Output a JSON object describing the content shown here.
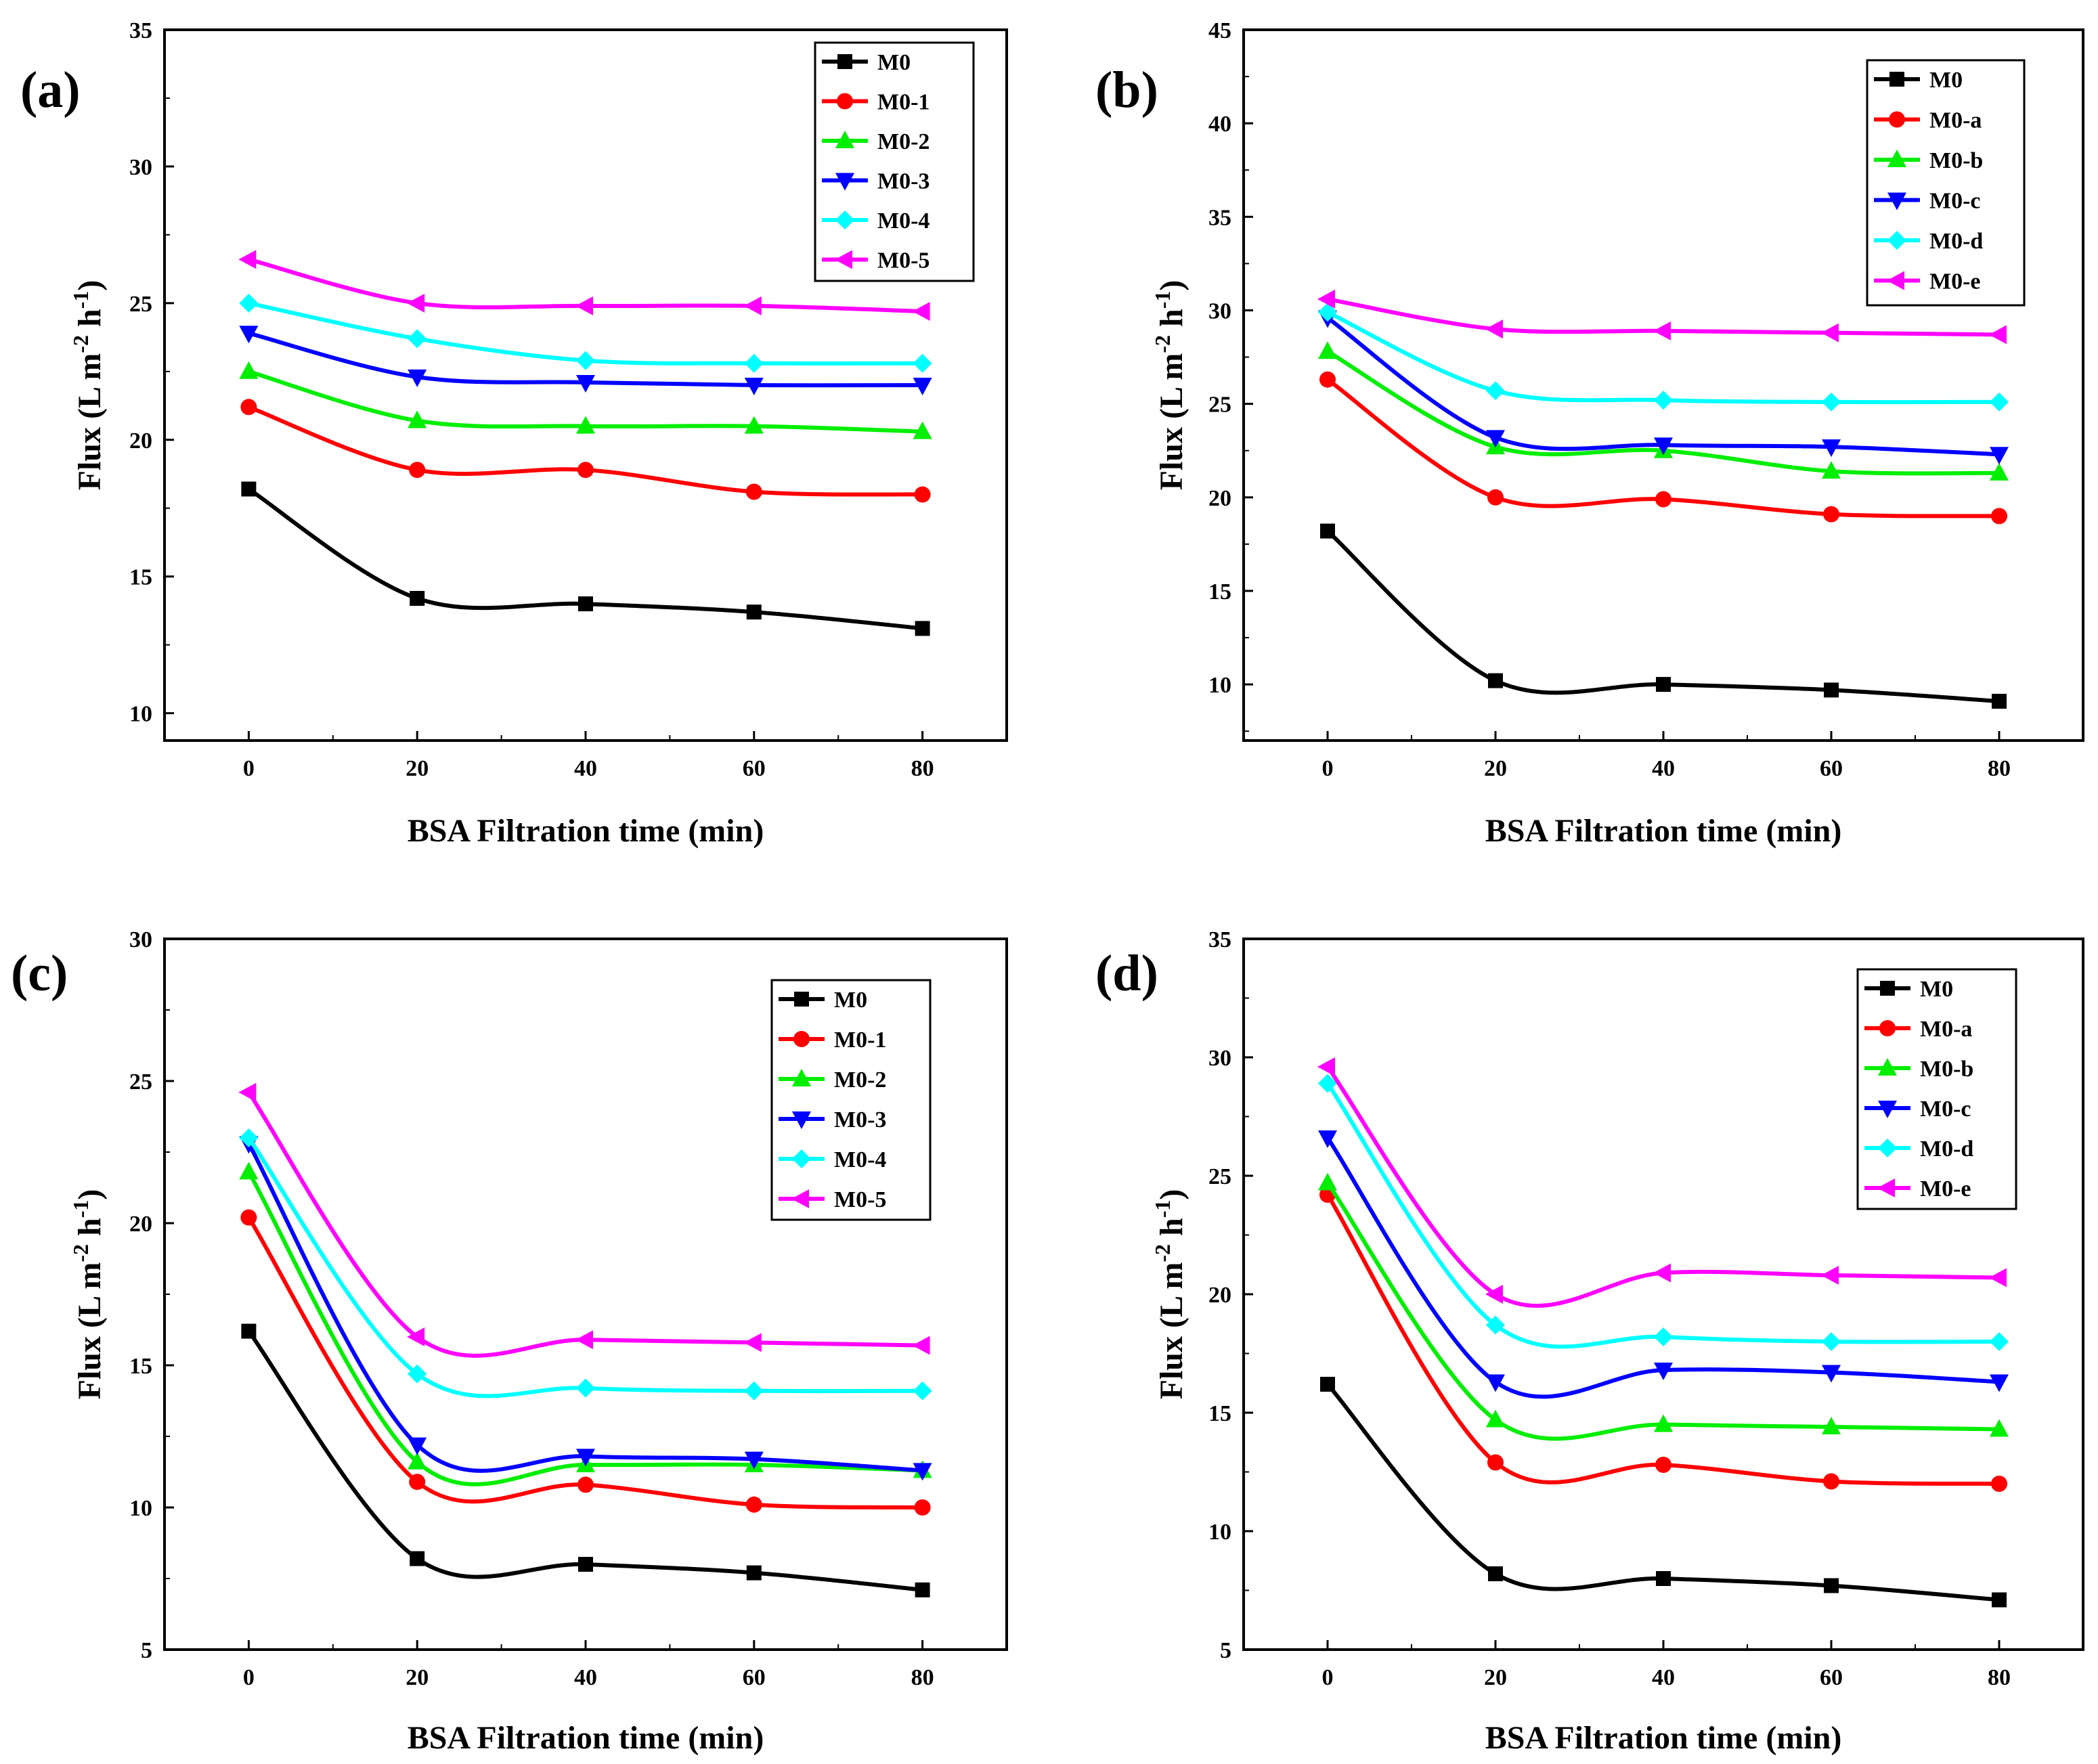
{
  "chart_data": [
    {
      "type": "line",
      "panel_label": "(a)",
      "xlabel": "BSA Filtration time (min)",
      "ylabel": "Flux (L m",
      "ylabel_sup1": "-2",
      "ylabel_mid": " h",
      "ylabel_sup2": "-1",
      "ylabel_end": ")",
      "xlim": [
        -10,
        90
      ],
      "ylim": [
        9,
        35
      ],
      "xticks": [
        0,
        20,
        40,
        60,
        80
      ],
      "yticks": [
        10,
        15,
        20,
        25,
        30,
        35
      ],
      "x": [
        0,
        20,
        40,
        60,
        80
      ],
      "legend_position": "top-right",
      "series": [
        {
          "name": "M0",
          "color": "#000000",
          "marker": "square",
          "values": [
            18.2,
            14.2,
            14.0,
            13.7,
            13.1
          ]
        },
        {
          "name": "M0-1",
          "color": "#ff0000",
          "marker": "circle",
          "values": [
            21.2,
            18.9,
            18.9,
            18.1,
            18.0
          ]
        },
        {
          "name": "M0-2",
          "color": "#00ee00",
          "marker": "triangle-up",
          "values": [
            22.5,
            20.7,
            20.5,
            20.5,
            20.3
          ]
        },
        {
          "name": "M0-3",
          "color": "#0000ff",
          "marker": "triangle-down",
          "values": [
            23.9,
            22.3,
            22.1,
            22.0,
            22.0
          ]
        },
        {
          "name": "M0-4",
          "color": "#00ffff",
          "marker": "diamond",
          "values": [
            25.0,
            23.7,
            22.9,
            22.8,
            22.8
          ]
        },
        {
          "name": "M0-5",
          "color": "#ff00ff",
          "marker": "triangle-left",
          "values": [
            26.6,
            25.0,
            24.9,
            24.9,
            24.7
          ]
        }
      ]
    },
    {
      "type": "line",
      "panel_label": "(b)",
      "xlabel": "BSA Filtration time (min)",
      "ylabel": "Flux (L m",
      "ylabel_sup1": "-2",
      "ylabel_mid": " h",
      "ylabel_sup2": "-1",
      "ylabel_end": ")",
      "xlim": [
        -10,
        90
      ],
      "ylim": [
        7,
        45
      ],
      "xticks": [
        0,
        20,
        40,
        60,
        80
      ],
      "yticks": [
        10,
        15,
        20,
        25,
        30,
        35,
        40,
        45
      ],
      "x": [
        0,
        20,
        40,
        60,
        80
      ],
      "legend_position": "top-right",
      "series": [
        {
          "name": "M0",
          "color": "#000000",
          "marker": "square",
          "values": [
            18.2,
            10.2,
            10.0,
            9.7,
            9.1
          ]
        },
        {
          "name": "M0-a",
          "color": "#ff0000",
          "marker": "circle",
          "values": [
            26.3,
            20.0,
            19.9,
            19.1,
            19.0
          ]
        },
        {
          "name": "M0-b",
          "color": "#00ee00",
          "marker": "triangle-up",
          "values": [
            27.8,
            22.7,
            22.5,
            21.4,
            21.3
          ]
        },
        {
          "name": "M0-c",
          "color": "#0000ff",
          "marker": "triangle-down",
          "values": [
            29.6,
            23.2,
            22.8,
            22.7,
            22.3
          ]
        },
        {
          "name": "M0-d",
          "color": "#00ffff",
          "marker": "diamond",
          "values": [
            29.9,
            25.7,
            25.2,
            25.1,
            25.1
          ]
        },
        {
          "name": "M0-e",
          "color": "#ff00ff",
          "marker": "triangle-left",
          "values": [
            30.6,
            29.0,
            28.9,
            28.8,
            28.7
          ]
        }
      ]
    },
    {
      "type": "line",
      "panel_label": "(c)",
      "xlabel": "BSA Filtration time (min)",
      "ylabel": "Flux (L m",
      "ylabel_sup1": "-2",
      "ylabel_mid": " h",
      "ylabel_sup2": "-1",
      "ylabel_end": ")",
      "xlim": [
        -10,
        90
      ],
      "ylim": [
        5,
        30
      ],
      "xticks": [
        0,
        20,
        40,
        60,
        80
      ],
      "yticks": [
        5,
        10,
        15,
        20,
        25,
        30
      ],
      "x": [
        0,
        20,
        40,
        60,
        80
      ],
      "legend_position": "top-right",
      "series": [
        {
          "name": "M0",
          "color": "#000000",
          "marker": "square",
          "values": [
            16.2,
            8.2,
            8.0,
            7.7,
            7.1
          ]
        },
        {
          "name": "M0-1",
          "color": "#ff0000",
          "marker": "circle",
          "values": [
            20.2,
            10.9,
            10.8,
            10.1,
            10.0
          ]
        },
        {
          "name": "M0-2",
          "color": "#00ee00",
          "marker": "triangle-up",
          "values": [
            21.8,
            11.6,
            11.5,
            11.5,
            11.3
          ]
        },
        {
          "name": "M0-3",
          "color": "#0000ff",
          "marker": "triangle-down",
          "values": [
            22.8,
            12.2,
            11.8,
            11.7,
            11.3
          ]
        },
        {
          "name": "M0-4",
          "color": "#00ffff",
          "marker": "diamond",
          "values": [
            23.0,
            14.7,
            14.2,
            14.1,
            14.1
          ]
        },
        {
          "name": "M0-5",
          "color": "#ff00ff",
          "marker": "triangle-left",
          "values": [
            24.6,
            16.0,
            15.9,
            15.8,
            15.7
          ]
        }
      ]
    },
    {
      "type": "line",
      "panel_label": "(d)",
      "xlabel": "BSA Filtration time (min)",
      "ylabel": "Flux (L m",
      "ylabel_sup1": "-2",
      "ylabel_mid": " h",
      "ylabel_sup2": "-1",
      "ylabel_end": ")",
      "xlim": [
        -10,
        90
      ],
      "ylim": [
        5,
        35
      ],
      "xticks": [
        0,
        20,
        40,
        60,
        80
      ],
      "yticks": [
        5,
        10,
        15,
        20,
        25,
        30,
        35
      ],
      "x": [
        0,
        20,
        40,
        60,
        80
      ],
      "legend_position": "top-right",
      "series": [
        {
          "name": "M0",
          "color": "#000000",
          "marker": "square",
          "values": [
            16.2,
            8.2,
            8.0,
            7.7,
            7.1
          ]
        },
        {
          "name": "M0-a",
          "color": "#ff0000",
          "marker": "circle",
          "values": [
            24.2,
            12.9,
            12.8,
            12.1,
            12.0
          ]
        },
        {
          "name": "M0-b",
          "color": "#00ee00",
          "marker": "triangle-up",
          "values": [
            24.7,
            14.7,
            14.5,
            14.4,
            14.3
          ]
        },
        {
          "name": "M0-c",
          "color": "#0000ff",
          "marker": "triangle-down",
          "values": [
            26.6,
            16.3,
            16.8,
            16.7,
            16.3
          ]
        },
        {
          "name": "M0-d",
          "color": "#00ffff",
          "marker": "diamond",
          "values": [
            28.9,
            18.7,
            18.2,
            18.0,
            18.0
          ]
        },
        {
          "name": "M0-e",
          "color": "#ff00ff",
          "marker": "triangle-left",
          "values": [
            29.6,
            20.0,
            20.9,
            20.8,
            20.7
          ]
        }
      ]
    }
  ]
}
